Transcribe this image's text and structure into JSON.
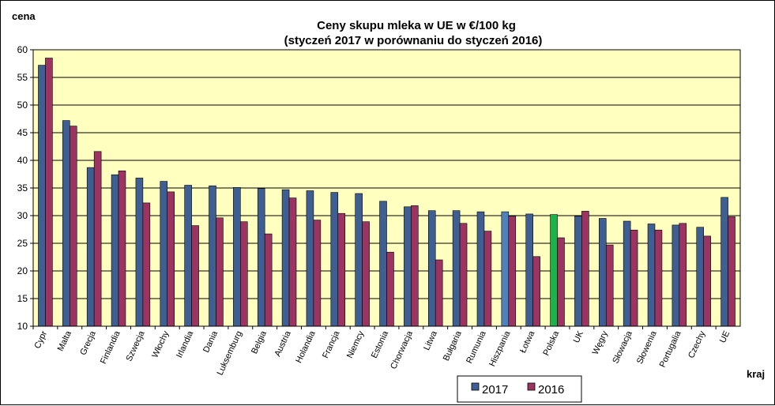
{
  "chart_data": {
    "type": "bar",
    "title": "Ceny skupu mleka  w UE w €/100 kg",
    "subtitle": "(styczeń  2017 w porównaniu do styczeń 2016)",
    "ylabel": "cena",
    "xlabel": "kraj",
    "ylim": [
      10,
      60
    ],
    "yticks": [
      10,
      15,
      20,
      25,
      30,
      35,
      40,
      45,
      50,
      55,
      60
    ],
    "grid": true,
    "legend_position": "bottom-right",
    "categories": [
      "Cypr",
      "Malta",
      "Grecja",
      "Finlandia",
      "Szwecja",
      "Włochy",
      "Irlandia",
      "Dania",
      "Luksemburg",
      "Belgia",
      "Austria",
      "Holandia",
      "Francja",
      "Niemcy",
      "Estonia",
      "Chorwacja",
      "Litwa",
      "Bułgaria",
      "Rumunia",
      "Hiszpania",
      "Łotwa",
      "Polska",
      "UK",
      "Węgry",
      "Słowacja",
      "Słowenia",
      "Portugalia",
      "Czechy",
      "UE"
    ],
    "series": [
      {
        "name": "2017",
        "color": "#3F5F93",
        "values": [
          57.2,
          47.2,
          38.7,
          37.4,
          36.8,
          36.2,
          35.5,
          35.4,
          35.1,
          34.9,
          34.7,
          34.5,
          34.2,
          34.0,
          32.6,
          31.6,
          30.9,
          30.9,
          30.7,
          30.7,
          30.3,
          30.2,
          29.9,
          29.5,
          29.0,
          28.5,
          28.3,
          27.9,
          33.3
        ],
        "highlights": {
          "Hiszpania": "#4F81BD",
          "Polska": "#1DB34B"
        }
      },
      {
        "name": "2016",
        "color": "#9B3461",
        "values": [
          58.5,
          46.2,
          41.6,
          38.1,
          32.3,
          34.3,
          28.2,
          29.6,
          28.9,
          26.7,
          33.2,
          29.2,
          30.4,
          28.9,
          23.4,
          31.8,
          22.0,
          28.6,
          27.2,
          29.9,
          22.6,
          26.0,
          30.8,
          24.7,
          27.4,
          27.4,
          28.6,
          26.3,
          29.8
        ]
      }
    ]
  }
}
